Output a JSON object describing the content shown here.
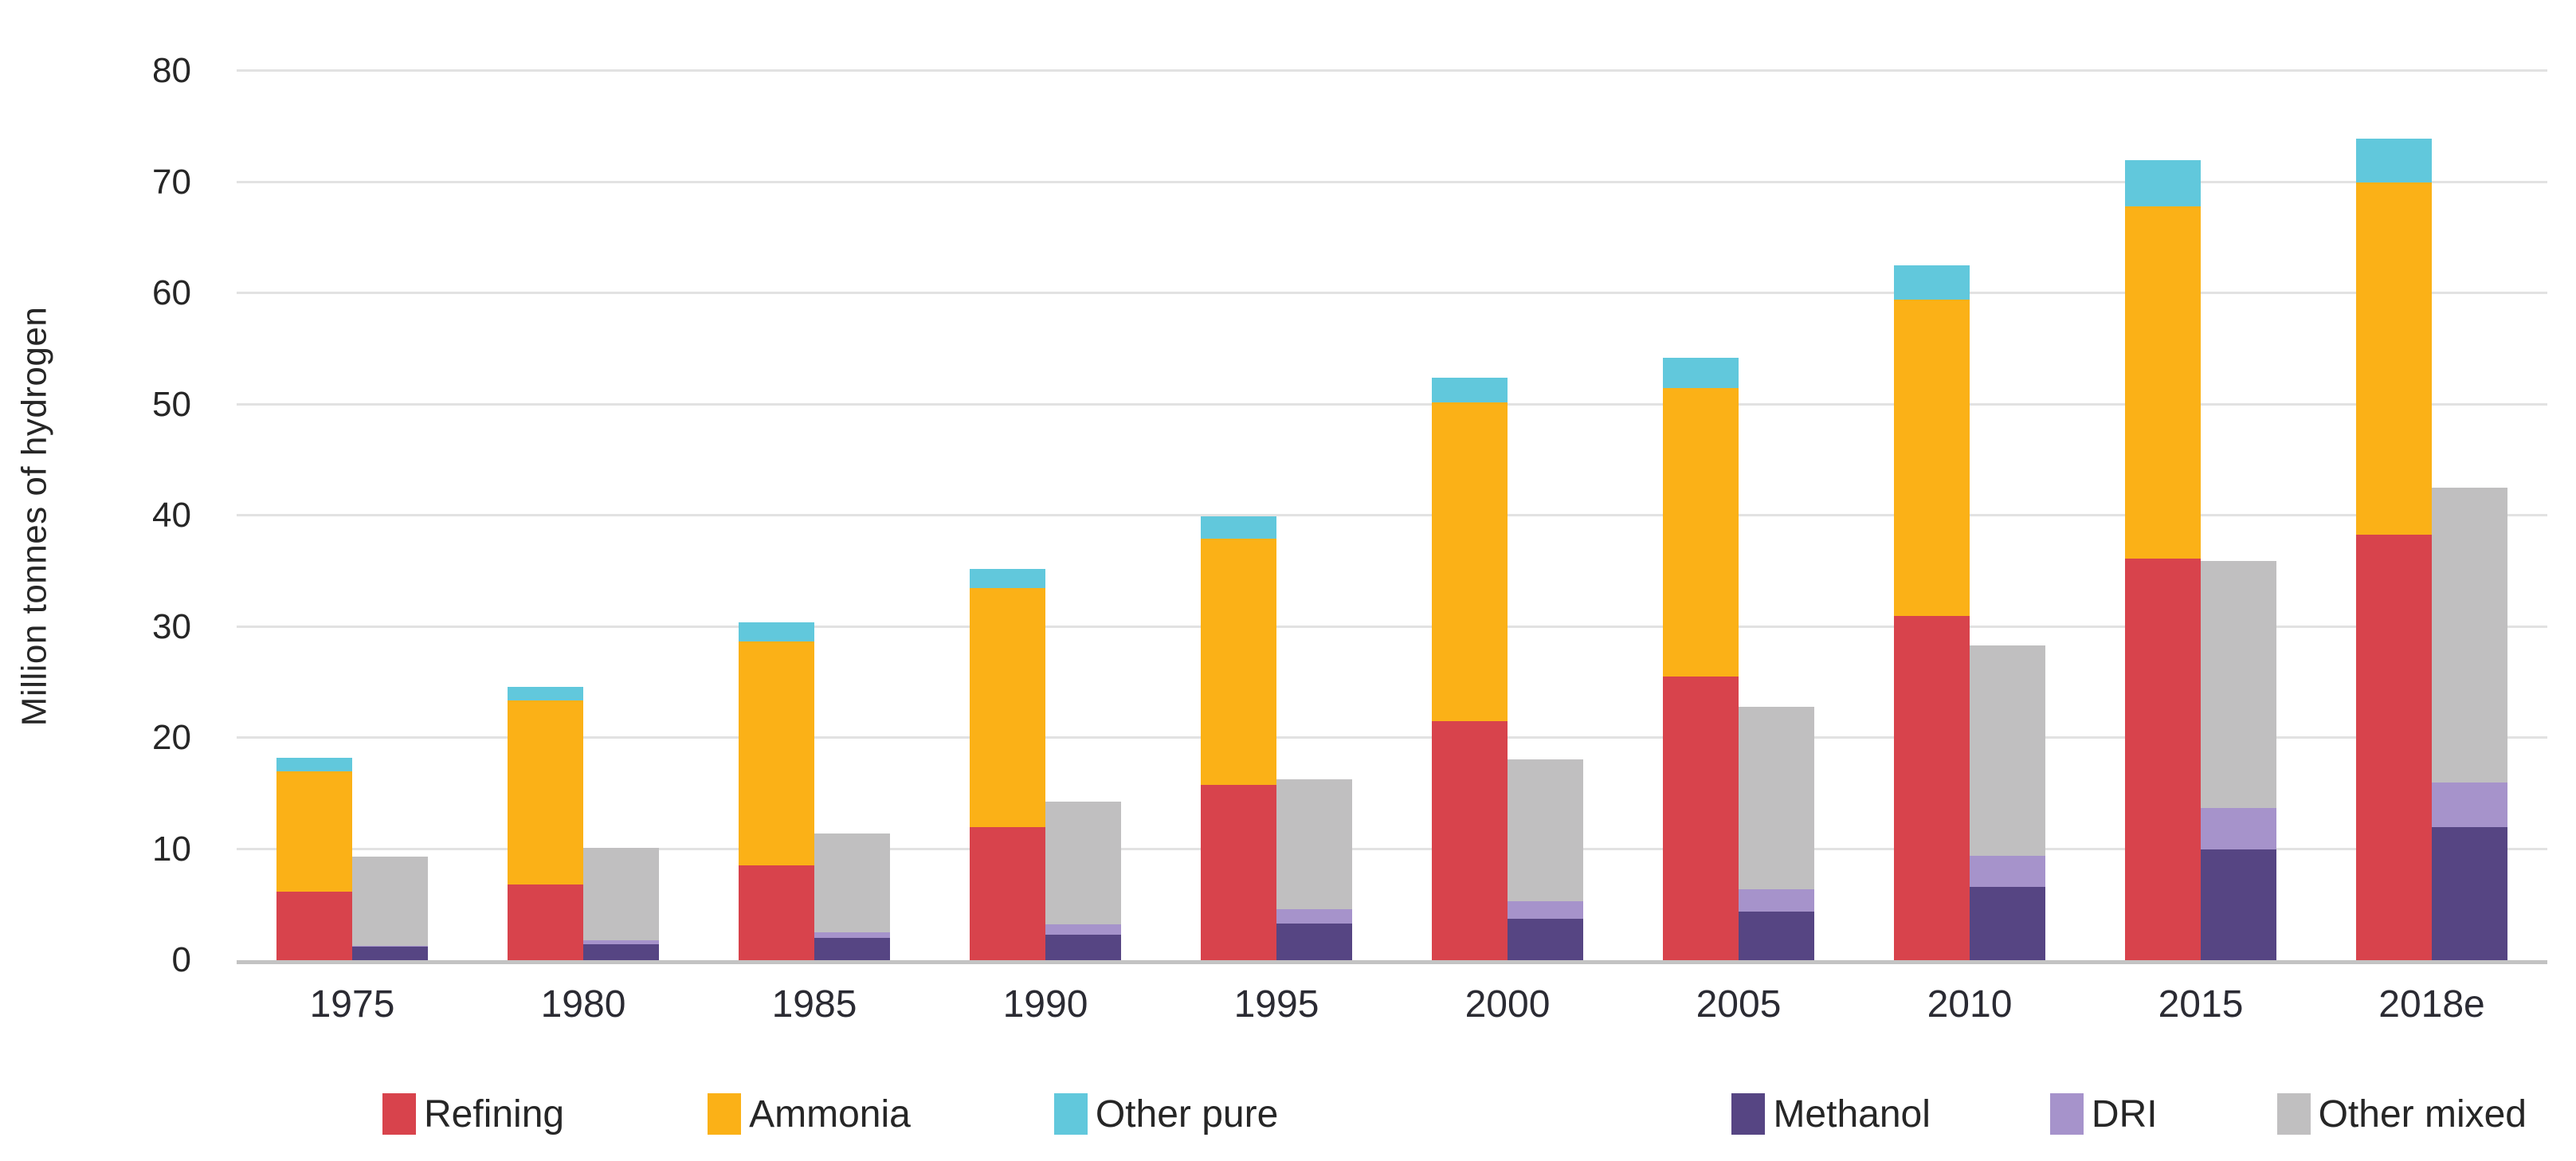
{
  "chart_data": {
    "type": "bar",
    "variant": "grouped-stacked-columns",
    "title": "",
    "ylabel": "Million tonnes of hydrogen",
    "xlabel": "",
    "ylim": [
      0,
      80
    ],
    "y_ticks": [
      0,
      10,
      20,
      30,
      40,
      50,
      60,
      70,
      80
    ],
    "grid": "horizontal",
    "legend_position": "bottom",
    "categories": [
      "1975",
      "1980",
      "1985",
      "1990",
      "1995",
      "2000",
      "2005",
      "2010",
      "2015",
      "2018e"
    ],
    "stacks": [
      {
        "name": "pure",
        "series": [
          {
            "name": "Refining",
            "color": "#d8434c",
            "values": [
              6.2,
              6.8,
              8.5,
              12.0,
              15.8,
              21.5,
              25.5,
              31.0,
              36.1,
              38.3
            ]
          },
          {
            "name": "Ammonia",
            "color": "#fbb117",
            "values": [
              10.8,
              16.6,
              20.2,
              21.5,
              22.1,
              28.7,
              26.0,
              28.4,
              31.7,
              31.7
            ]
          },
          {
            "name": "Other pure",
            "color": "#61c8dc",
            "values": [
              1.2,
              1.2,
              1.7,
              1.7,
              2.0,
              2.2,
              2.7,
              3.1,
              4.2,
              3.9
            ]
          }
        ]
      },
      {
        "name": "mixed",
        "series": [
          {
            "name": "Methanol",
            "color": "#564583",
            "values": [
              1.2,
              1.4,
              2.0,
              2.3,
              3.3,
              3.7,
              4.4,
              6.6,
              10.0,
              12.0
            ]
          },
          {
            "name": "DRI",
            "color": "#a693cb",
            "values": [
              0.1,
              0.4,
              0.5,
              0.9,
              1.3,
              1.6,
              2.0,
              2.8,
              3.7,
              4.0
            ]
          },
          {
            "name": "Other mixed",
            "color": "#c0bfc0",
            "values": [
              8.0,
              8.3,
              8.9,
              11.1,
              11.7,
              12.8,
              16.4,
              18.9,
              22.2,
              26.5
            ]
          }
        ]
      }
    ],
    "legend": {
      "pure": [
        {
          "label": "Refining",
          "color": "#d8434c"
        },
        {
          "label": "Ammonia",
          "color": "#fbb117"
        },
        {
          "label": "Other pure",
          "color": "#61c8dc"
        }
      ],
      "mixed": [
        {
          "label": "Methanol",
          "color": "#564583"
        },
        {
          "label": "DRI",
          "color": "#a693cb"
        },
        {
          "label": "Other mixed",
          "color": "#c0bfc0"
        }
      ]
    },
    "colors": {
      "gridline": "#e2e2e2",
      "axis_line": "#c3c3c3",
      "text": "#262626"
    }
  },
  "axis": {
    "y_title": "Million tonnes of hydrogen"
  }
}
